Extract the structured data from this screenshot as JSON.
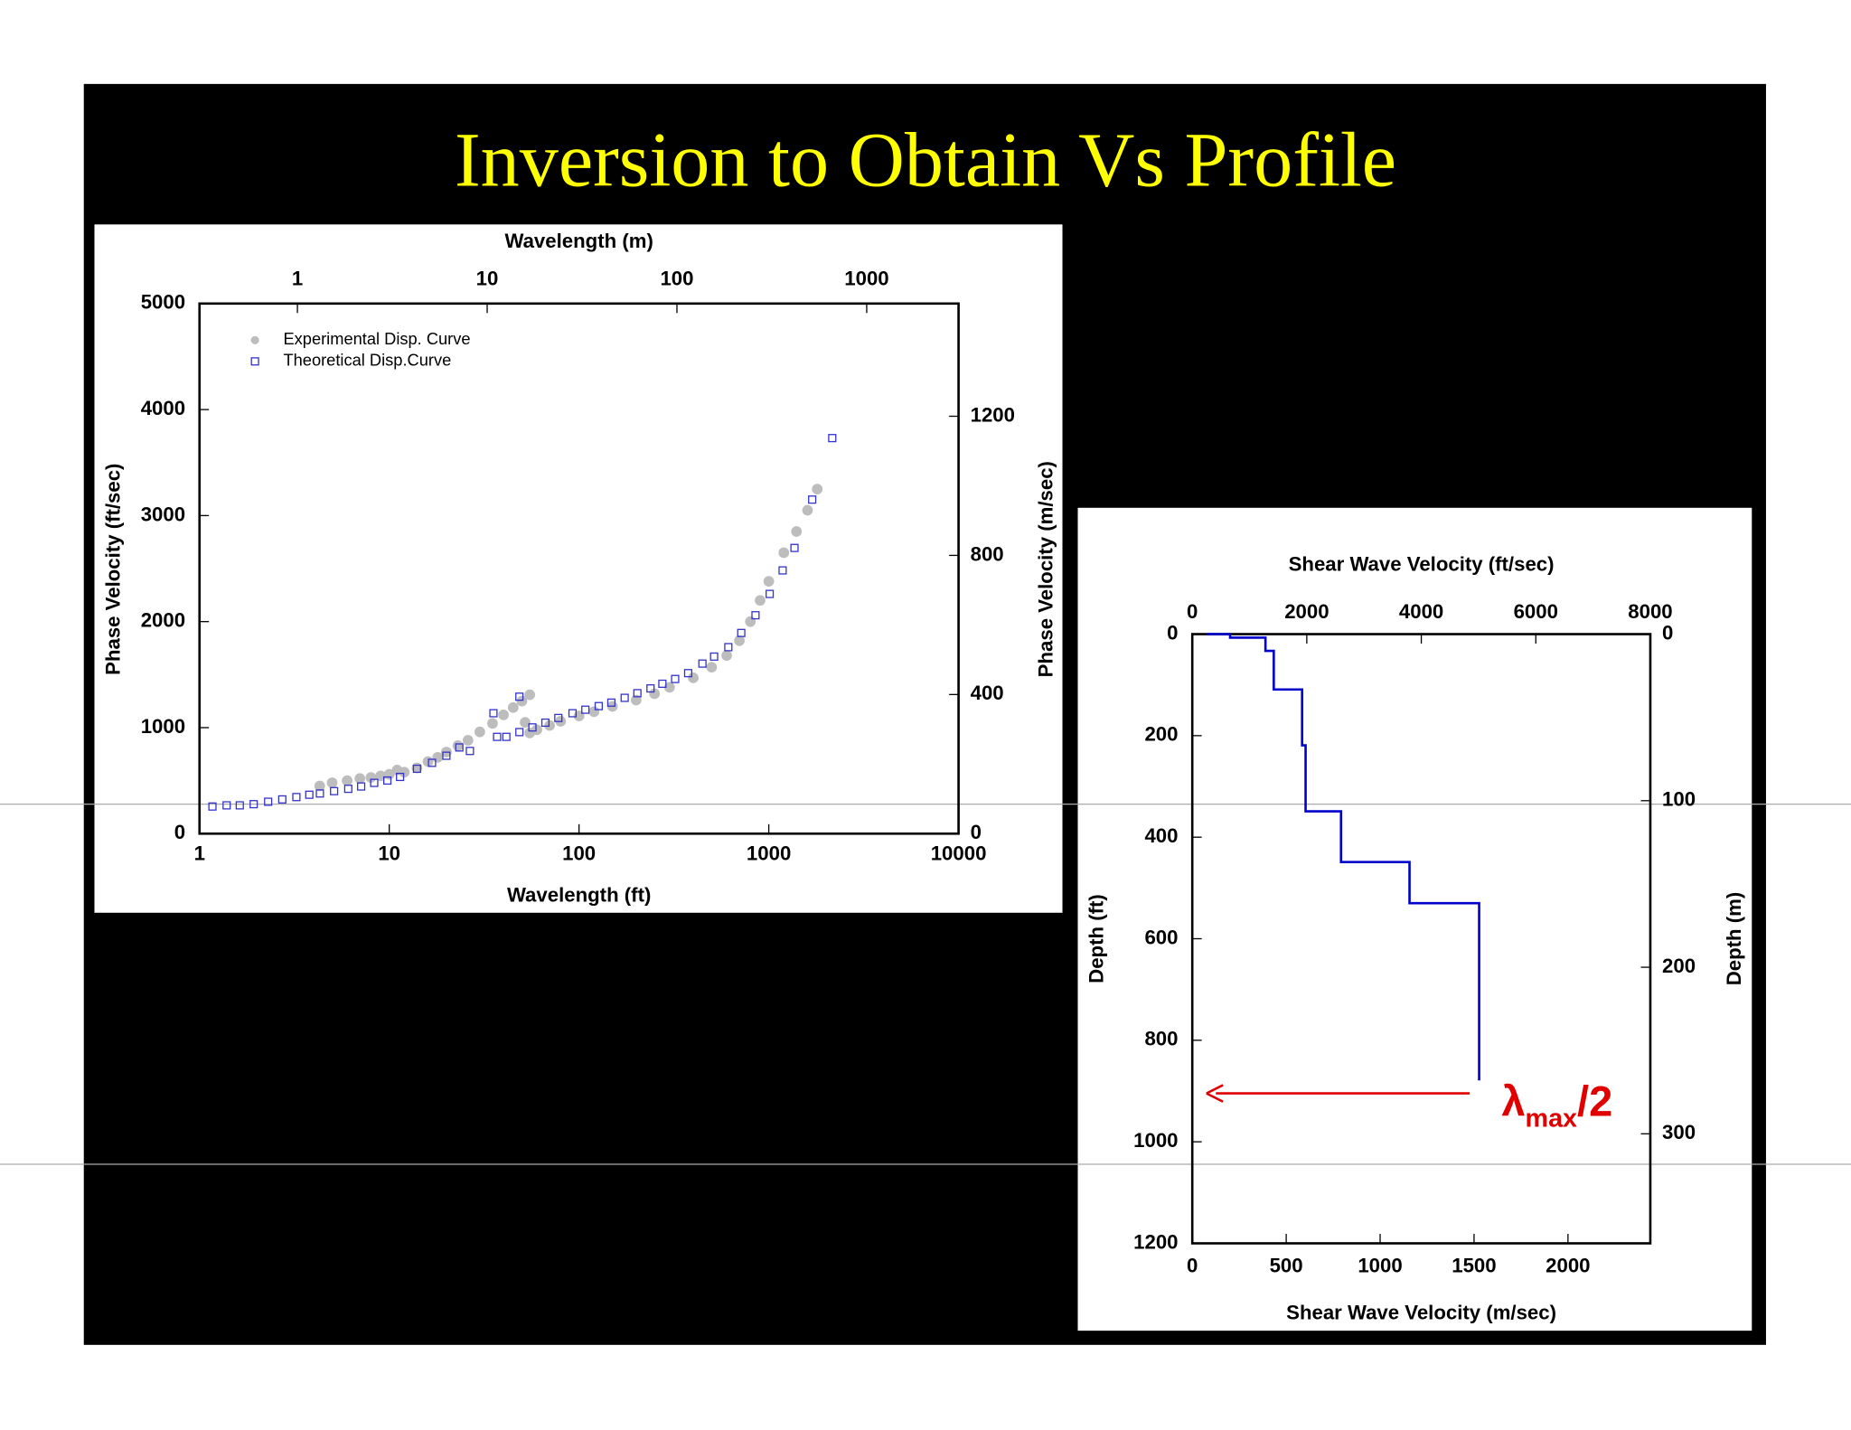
{
  "slide_title": "Inversion to Obtain Vs Profile",
  "chart_data": [
    {
      "type": "scatter",
      "xlabel": "Wavelength (ft)",
      "x2label": "Wavelength (m)",
      "ylabel": "Phase Velocity (ft/sec)",
      "y2label": "Phase Velocity (m/sec)",
      "xscale": "log",
      "xlim": [
        1,
        10000
      ],
      "xticks": [
        1,
        10,
        100,
        1000,
        10000
      ],
      "x2lim": [
        0.3048,
        3048
      ],
      "x2ticks": [
        1,
        10,
        100,
        1000
      ],
      "ylim": [
        0,
        5000
      ],
      "yticks": [
        0,
        1000,
        2000,
        3000,
        4000,
        5000
      ],
      "y2lim": [
        0,
        1524
      ],
      "y2ticks": [
        0,
        400,
        800,
        1200
      ],
      "legend": "upper left",
      "series": [
        {
          "name": "Experimental Disp. Curve",
          "color": "#bdbdbd",
          "marker": "circle",
          "x": [
            4.3,
            5,
            6,
            7,
            8,
            9,
            10,
            11,
            12,
            14,
            16,
            18,
            20,
            23,
            26,
            30,
            35,
            40,
            45,
            50,
            55,
            52,
            55,
            60,
            70,
            80,
            100,
            120,
            150,
            200,
            250,
            300,
            400,
            500,
            600,
            700,
            800,
            900,
            1000,
            1200,
            1400,
            1600,
            1800
          ],
          "y": [
            450,
            480,
            500,
            520,
            530,
            545,
            560,
            600,
            580,
            620,
            680,
            720,
            770,
            830,
            880,
            960,
            1040,
            1120,
            1190,
            1250,
            1310,
            1050,
            950,
            980,
            1020,
            1060,
            1110,
            1150,
            1200,
            1260,
            1320,
            1380,
            1470,
            1570,
            1680,
            1820,
            2000,
            2200,
            2380,
            2650,
            2850,
            3050,
            3250
          ]
        },
        {
          "name": "Theoretical Disp.Curve",
          "color": "#3333cc",
          "marker": "square",
          "x": [
            1.17,
            1.39,
            1.63,
            1.93,
            2.3,
            2.73,
            3.24,
            3.79,
            4.31,
            5.12,
            6.08,
            7.11,
            8.33,
            9.77,
            11.4,
            14.0,
            16.8,
            20.0,
            23.4,
            26.6,
            35.4,
            37.0,
            41.4,
            48.5,
            48.5,
            56.8,
            66.5,
            77.8,
            92.4,
            108,
            127,
            148,
            174,
            203,
            238,
            275,
            321,
            376,
            447,
            515,
            612,
            716,
            851,
            1011,
            1183,
            1366,
            1693,
            2160
          ],
          "y": [
            256,
            267,
            267,
            278,
            301,
            323,
            345,
            367,
            379,
            401,
            423,
            445,
            479,
            501,
            535,
            612,
            668,
            735,
            813,
            780,
            1136,
            913,
            913,
            1292,
            958,
            1002,
            1047,
            1091,
            1136,
            1169,
            1203,
            1236,
            1281,
            1325,
            1370,
            1414,
            1459,
            1514,
            1604,
            1670,
            1759,
            1893,
            2060,
            2261,
            2483,
            2695,
            3151,
            3731
          ]
        }
      ]
    },
    {
      "type": "line",
      "xlabel": "Shear Wave Velocity (ft/sec)",
      "x2label": "Shear Wave Velocity (m/sec)",
      "ylabel": "Depth (ft)",
      "y2label": "Depth (m)",
      "xlim": [
        0,
        8000
      ],
      "xticks": [
        0,
        2000,
        4000,
        6000,
        8000
      ],
      "x2lim": [
        0,
        2438.4
      ],
      "x2ticks": [
        0,
        500,
        1000,
        1500,
        2000
      ],
      "ylim": [
        0,
        1200
      ],
      "yticks": [
        0,
        200,
        400,
        600,
        800,
        1000,
        1200
      ],
      "y_inverted": true,
      "y2lim": [
        0,
        365.76
      ],
      "y2ticks": [
        0,
        100,
        200,
        300
      ],
      "annotation": [
        "λ",
        "max",
        "/2"
      ],
      "series": [
        {
          "color": "#0000cc",
          "x": [
            247,
            660,
            660,
            1278,
            1278,
            1423,
            1423,
            1918,
            1918,
            1979,
            1979,
            2598,
            2598,
            3794,
            3794,
            5010,
            5010
          ],
          "y": [
            0,
            0,
            7,
            7,
            33,
            33,
            109,
            109,
            219,
            219,
            349,
            349,
            449,
            449,
            530,
            530,
            879
          ]
        }
      ]
    }
  ]
}
